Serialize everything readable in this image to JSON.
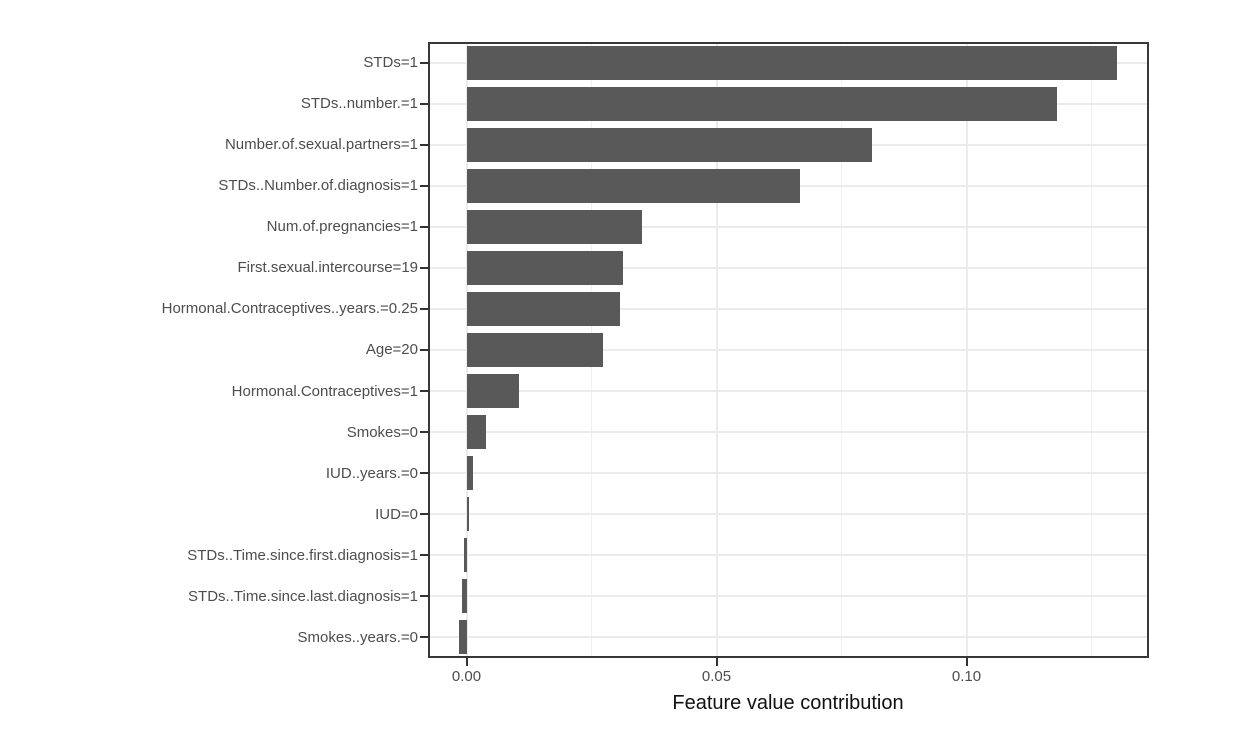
{
  "figure": {
    "background": "#ffffff",
    "bar_color": "#595959",
    "panel_border_color": "#383838",
    "grid_major_color": "#ebebeb",
    "grid_minor_color": "#f0f0f0",
    "axis_text_color": "#4d4d4d",
    "axis_title_color": "#111111"
  },
  "chart_data": {
    "type": "bar",
    "orientation": "horizontal",
    "title": "",
    "xlabel": "Feature value contribution",
    "ylabel": "",
    "categories": [
      "STDs=1",
      "STDs..number.=1",
      "Number.of.sexual.partners=1",
      "STDs..Number.of.diagnosis=1",
      "Num.of.pregnancies=1",
      "First.sexual.intercourse=19",
      "Hormonal.Contraceptives..years.=0.25",
      "Age=20",
      "Hormonal.Contraceptives=1",
      "Smokes=0",
      "IUD..years.=0",
      "IUD=0",
      "STDs..Time.since.first.diagnosis=1",
      "STDs..Time.since.last.diagnosis=1",
      "Smokes..years.=0"
    ],
    "values": [
      0.13,
      0.118,
      0.081,
      0.0666,
      0.035,
      0.0313,
      0.0306,
      0.0273,
      0.0105,
      0.0038,
      0.0012,
      0.0005,
      -0.0006,
      -0.0009,
      -0.0016
    ],
    "xlim": [
      -0.0077,
      0.1365
    ],
    "x_major_ticks": [
      0,
      0.05,
      0.1
    ],
    "x_major_tick_labels": [
      "0.00",
      "0.05",
      "0.10"
    ],
    "x_minor_ticks": [
      0.025,
      0.075,
      0.125
    ],
    "grid": true,
    "legend_position": "none"
  }
}
